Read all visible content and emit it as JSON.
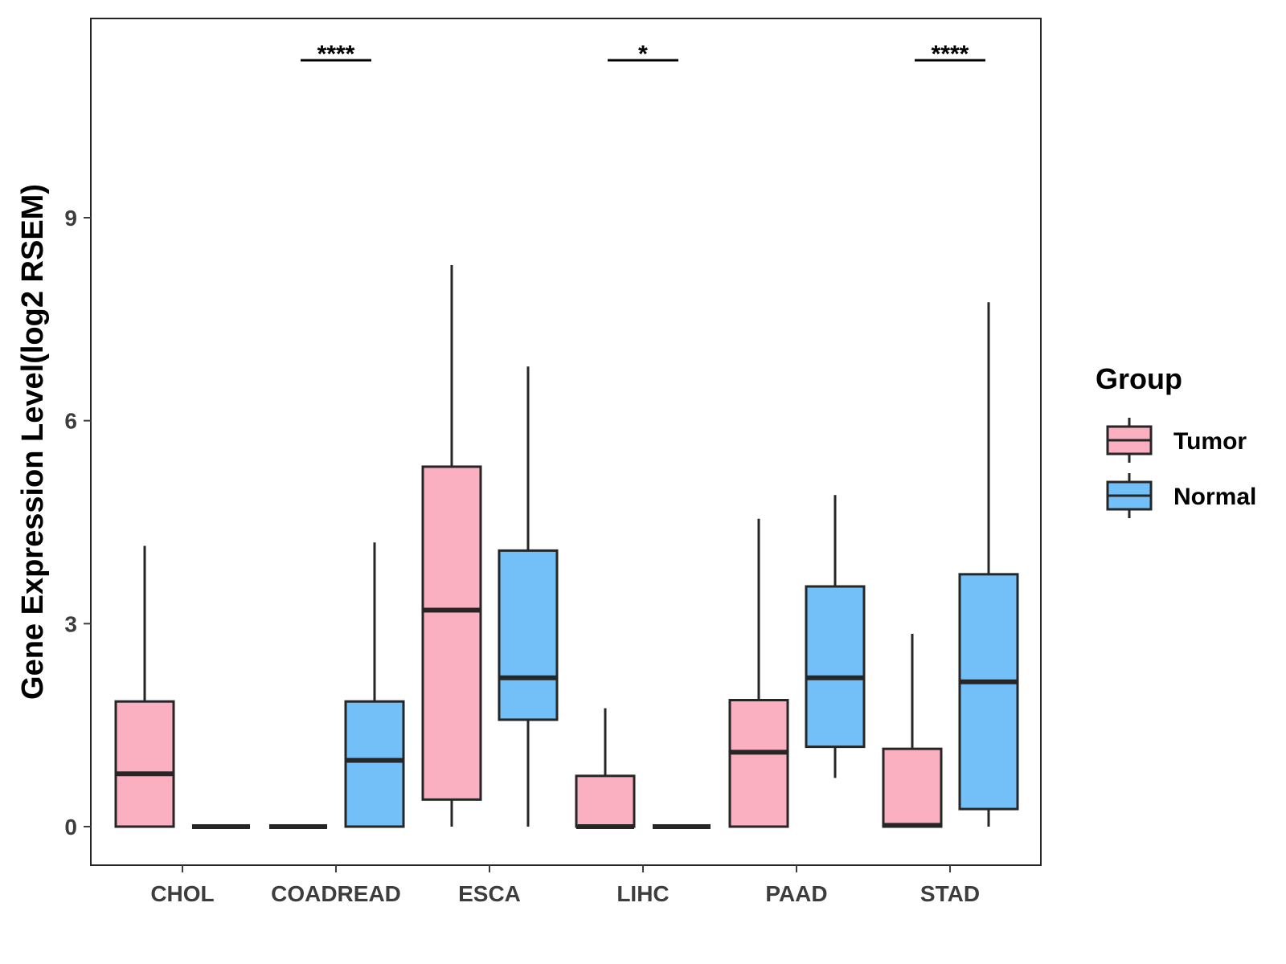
{
  "chart_data": {
    "type": "boxplot",
    "ylabel": "Gene Expression Level(log2 RSEM)",
    "xlabel": "",
    "ylim": [
      -0.55,
      11.95
    ],
    "yticks": [
      0,
      3,
      6,
      9
    ],
    "ytick_labels": [
      "0",
      "3",
      "6",
      "9"
    ],
    "categories": [
      "CHOL",
      "COADREAD",
      "ESCA",
      "LIHC",
      "PAAD",
      "STAD"
    ],
    "legend": {
      "title": "Group",
      "position": "right"
    },
    "series": [
      {
        "name": "Tumor",
        "color": "#FBB0C1",
        "boxes": [
          {
            "category": "CHOL",
            "lower": 0.0,
            "q1": 0.0,
            "median": 0.78,
            "q3": 1.85,
            "upper": 4.15
          },
          {
            "category": "COADREAD",
            "lower": 0.0,
            "q1": 0.0,
            "median": 0.0,
            "q3": 0.0,
            "upper": 0.0
          },
          {
            "category": "ESCA",
            "lower": 0.0,
            "q1": 0.4,
            "median": 3.2,
            "q3": 5.32,
            "upper": 8.3
          },
          {
            "category": "LIHC",
            "lower": 0.0,
            "q1": 0.0,
            "median": 0.0,
            "q3": 0.75,
            "upper": 1.75
          },
          {
            "category": "PAAD",
            "lower": 0.0,
            "q1": 0.0,
            "median": 1.1,
            "q3": 1.87,
            "upper": 4.55
          },
          {
            "category": "STAD",
            "lower": 0.0,
            "q1": 0.0,
            "median": 0.02,
            "q3": 1.15,
            "upper": 2.85
          }
        ]
      },
      {
        "name": "Normal",
        "color": "#73C0F8",
        "boxes": [
          {
            "category": "CHOL",
            "lower": 0.0,
            "q1": 0.0,
            "median": 0.0,
            "q3": 0.0,
            "upper": 0.0
          },
          {
            "category": "COADREAD",
            "lower": 0.0,
            "q1": 0.0,
            "median": 0.98,
            "q3": 1.85,
            "upper": 4.2
          },
          {
            "category": "ESCA",
            "lower": 0.0,
            "q1": 1.58,
            "median": 2.2,
            "q3": 4.08,
            "upper": 6.8
          },
          {
            "category": "LIHC",
            "lower": 0.0,
            "q1": 0.0,
            "median": 0.0,
            "q3": 0.0,
            "upper": 0.0
          },
          {
            "category": "PAAD",
            "lower": 0.72,
            "q1": 1.18,
            "median": 2.2,
            "q3": 3.55,
            "upper": 4.9
          },
          {
            "category": "STAD",
            "lower": 0.0,
            "q1": 0.26,
            "median": 2.14,
            "q3": 3.73,
            "upper": 7.75
          }
        ]
      }
    ],
    "annotations": [
      {
        "category": "COADREAD",
        "label": "****"
      },
      {
        "category": "LIHC",
        "label": "*"
      },
      {
        "category": "STAD",
        "label": "****"
      }
    ],
    "colors": {
      "stroke": "#262626",
      "axis": "#3d3d3d"
    }
  }
}
